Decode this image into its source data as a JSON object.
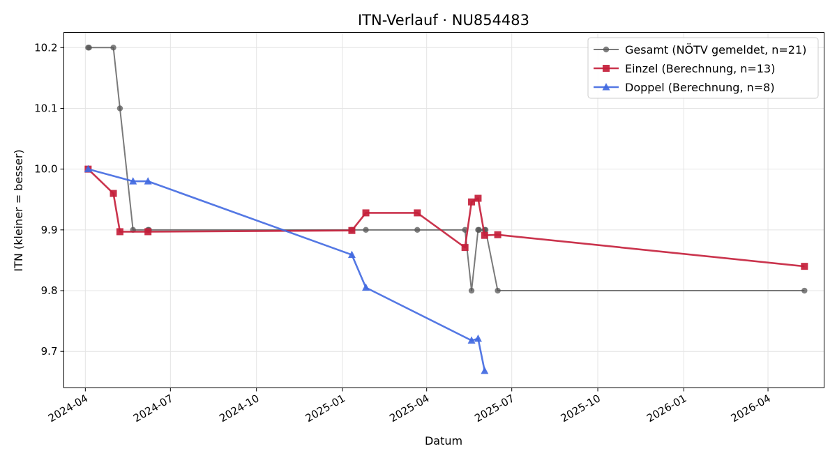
{
  "chart_data": {
    "type": "line",
    "title": "ITN-Verlauf · NU854483",
    "xlabel": "Datum",
    "ylabel": "ITN  (kleiner = besser)",
    "x_axis_type": "date",
    "xlim": [
      "2024-03-09",
      "2026-05-31"
    ],
    "ylim": [
      9.64,
      10.225
    ],
    "x_ticks": [
      "2024-04-01",
      "2024-07-01",
      "2024-10-01",
      "2025-01-01",
      "2025-04-01",
      "2025-07-01",
      "2025-10-01",
      "2026-01-01",
      "2026-04-01"
    ],
    "x_tick_labels": [
      "2024-04",
      "2024-07",
      "2024-10",
      "2025-01",
      "2025-04",
      "2025-07",
      "2025-10",
      "2026-01",
      "2026-04"
    ],
    "y_ticks": [
      9.7,
      9.8,
      9.9,
      10.0,
      10.1,
      10.2
    ],
    "y_tick_labels": [
      "9.7",
      "9.8",
      "9.9",
      "10.0",
      "10.1",
      "10.2"
    ],
    "grid": true,
    "legend_position": "top-right",
    "series": [
      {
        "name": "Gesamt (NÖTV gemeldet, n=21)",
        "color": "#555555",
        "marker": "circle",
        "points": [
          {
            "x": "2024-04-04",
            "y": 10.2
          },
          {
            "x": "2024-04-05",
            "y": 10.2
          },
          {
            "x": "2024-05-01",
            "y": 10.2
          },
          {
            "x": "2024-05-08",
            "y": 10.1
          },
          {
            "x": "2024-05-22",
            "y": 9.9
          },
          {
            "x": "2024-06-07",
            "y": 9.9
          },
          {
            "x": "2024-06-08",
            "y": 9.9
          },
          {
            "x": "2025-01-11",
            "y": 9.9
          },
          {
            "x": "2025-01-26",
            "y": 9.9
          },
          {
            "x": "2025-03-22",
            "y": 9.9
          },
          {
            "x": "2025-05-12",
            "y": 9.9
          },
          {
            "x": "2025-05-19",
            "y": 9.8
          },
          {
            "x": "2025-05-26",
            "y": 9.9
          },
          {
            "x": "2025-05-27",
            "y": 9.9
          },
          {
            "x": "2025-06-02",
            "y": 9.9
          },
          {
            "x": "2025-06-03",
            "y": 9.9
          },
          {
            "x": "2025-06-16",
            "y": 9.8
          },
          {
            "x": "2026-05-10",
            "y": 9.8
          }
        ]
      },
      {
        "name": "Einzel (Berechnung, n=13)",
        "color": "#c41e3a",
        "marker": "square",
        "points": [
          {
            "x": "2024-04-04",
            "y": 10.0
          },
          {
            "x": "2024-05-01",
            "y": 9.96
          },
          {
            "x": "2024-05-08",
            "y": 9.897
          },
          {
            "x": "2024-06-07",
            "y": 9.897
          },
          {
            "x": "2025-01-11",
            "y": 9.899
          },
          {
            "x": "2025-01-26",
            "y": 9.928
          },
          {
            "x": "2025-03-22",
            "y": 9.928
          },
          {
            "x": "2025-05-12",
            "y": 9.871
          },
          {
            "x": "2025-05-19",
            "y": 9.946
          },
          {
            "x": "2025-05-26",
            "y": 9.952
          },
          {
            "x": "2025-06-02",
            "y": 9.891
          },
          {
            "x": "2025-06-16",
            "y": 9.892
          },
          {
            "x": "2026-05-10",
            "y": 9.84
          }
        ]
      },
      {
        "name": "Doppel (Berechnung, n=8)",
        "color": "#4169e1",
        "marker": "triangle",
        "points": [
          {
            "x": "2024-04-04",
            "y": 10.0
          },
          {
            "x": "2024-05-22",
            "y": 9.98
          },
          {
            "x": "2024-06-07",
            "y": 9.98
          },
          {
            "x": "2025-01-11",
            "y": 9.859
          },
          {
            "x": "2025-01-26",
            "y": 9.805
          },
          {
            "x": "2025-05-19",
            "y": 9.718
          },
          {
            "x": "2025-05-26",
            "y": 9.721
          },
          {
            "x": "2025-06-02",
            "y": 9.668
          }
        ]
      }
    ]
  }
}
